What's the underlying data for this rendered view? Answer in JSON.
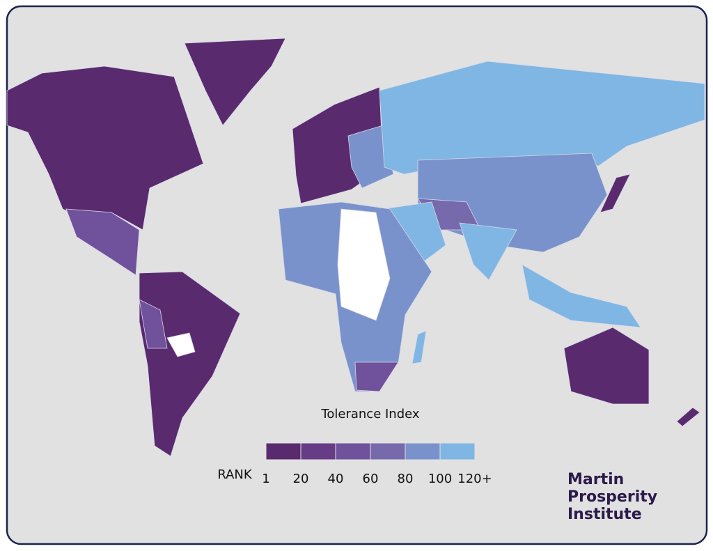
{
  "legend": {
    "title": "Tolerance Index",
    "axis_label": "RANK",
    "ticks": [
      "1",
      "20",
      "40",
      "60",
      "80",
      "100",
      "120+"
    ],
    "colors": [
      "#5a2a6e",
      "#673c86",
      "#70519b",
      "#7669ac",
      "#7a92cc",
      "#7fb6e4"
    ]
  },
  "logo": {
    "lines": [
      "Martin",
      "Prosperity",
      "Institute"
    ]
  }
}
